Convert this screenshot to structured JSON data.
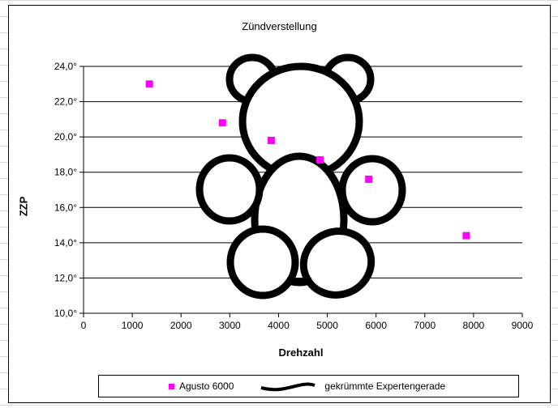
{
  "chart_data": {
    "type": "scatter",
    "title": "Zündverstellung",
    "xlabel": "Drehzahl",
    "ylabel": "ZZP",
    "xlim": [
      0,
      9000
    ],
    "ylim": [
      10,
      24
    ],
    "x_ticks": [
      "0",
      "1000",
      "2000",
      "3000",
      "4000",
      "5000",
      "6000",
      "7000",
      "8000",
      "9000"
    ],
    "y_ticks": [
      "10,0°",
      "12,0°",
      "14,0°",
      "16,0°",
      "18,0°",
      "20,0°",
      "22,0°",
      "24,0°"
    ],
    "grid": "horizontal",
    "legend_position": "bottom",
    "series": [
      {
        "name": "Agusto 6000",
        "color": "#ff00ff",
        "marker": "square",
        "x": [
          1350,
          2850,
          3850,
          4850,
          5850,
          7850
        ],
        "y": [
          23.0,
          20.8,
          19.8,
          18.7,
          17.6,
          14.4
        ]
      }
    ],
    "legend": [
      {
        "label": "Agusto 6000",
        "symbol": "magenta-square"
      },
      {
        "label": "gekrümmte Expertengerade",
        "symbol": "black-curve"
      }
    ]
  }
}
